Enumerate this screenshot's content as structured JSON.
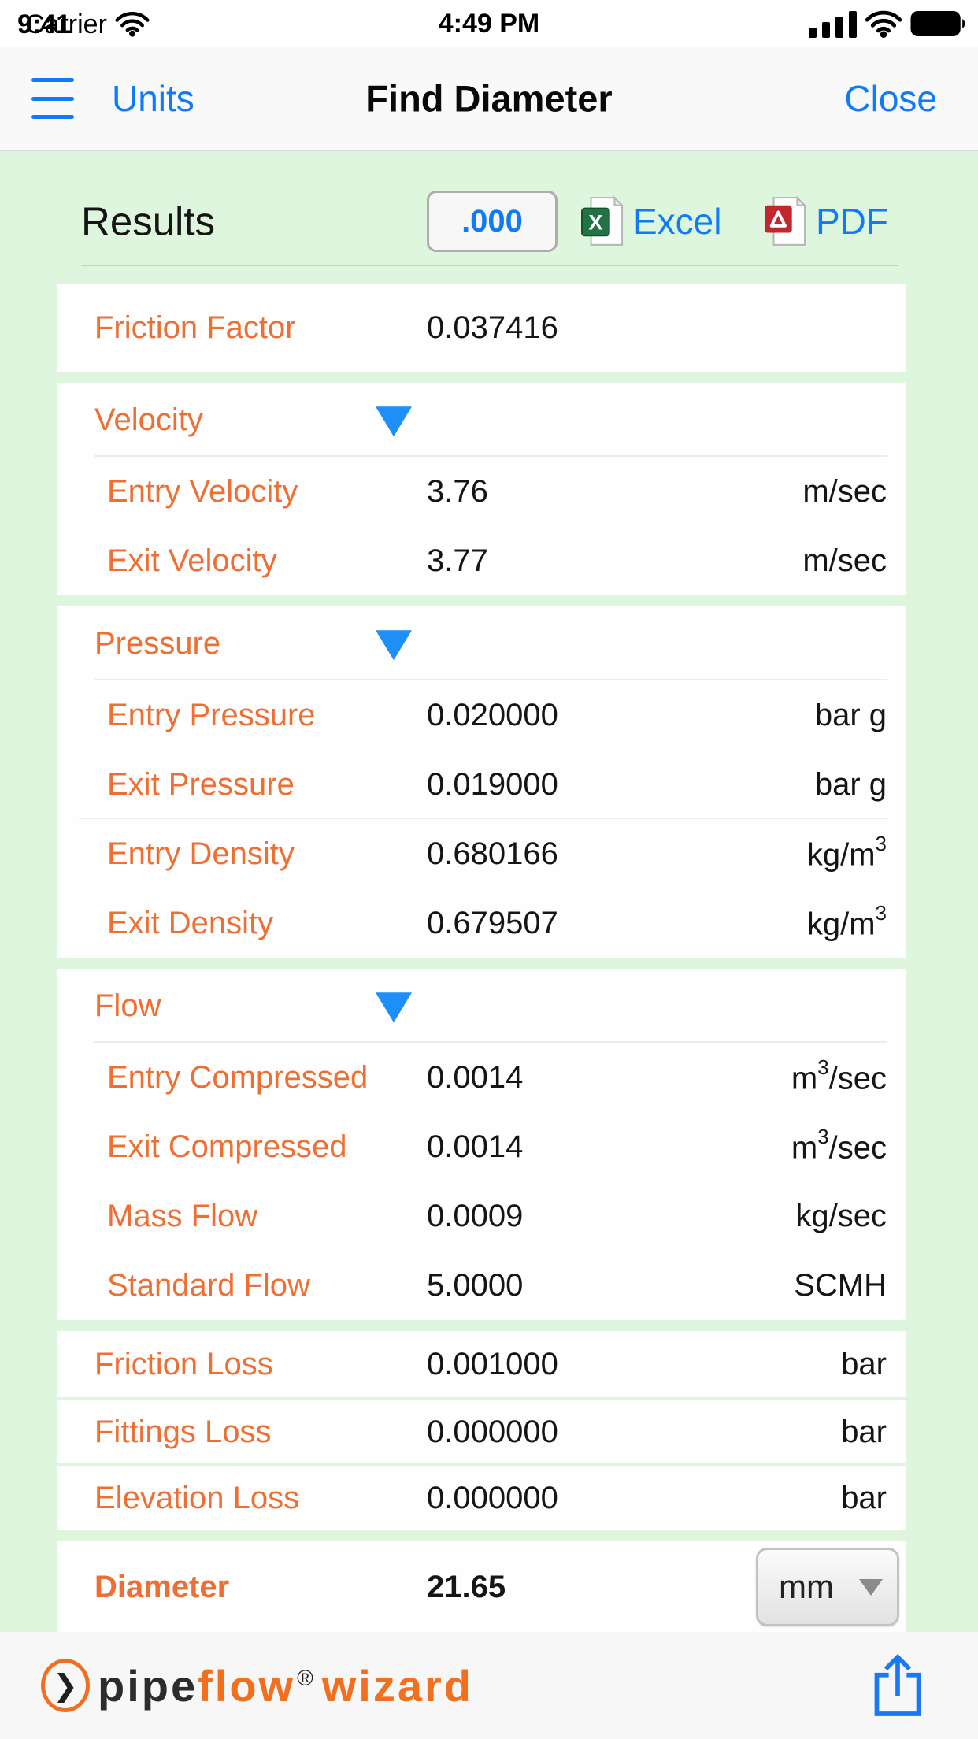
{
  "status_bar": {
    "carrier": "Carrier",
    "time_overlay": "9:41",
    "time": "4:49 PM"
  },
  "nav": {
    "menu_label": "Units",
    "title": "Find Diameter",
    "close_label": "Close"
  },
  "results": {
    "title": "Results",
    "decimals_button_label": ".000",
    "excel_label": "Excel",
    "pdf_label": "PDF"
  },
  "table": {
    "sections": [
      {
        "kind": "single",
        "rows": [
          {
            "label": "Friction Factor",
            "value": "0.037416",
            "unit": ""
          }
        ]
      },
      {
        "kind": "group",
        "header": "Velocity",
        "rows": [
          {
            "label": "Entry Velocity",
            "value": "3.76",
            "unit": "m/sec"
          },
          {
            "label": "Exit Velocity",
            "value": "3.77",
            "unit": "m/sec"
          }
        ]
      },
      {
        "kind": "group",
        "header": "Pressure",
        "rows": [
          {
            "label": "Entry Pressure",
            "value": "0.020000",
            "unit": "bar g"
          },
          {
            "label": "Exit Pressure",
            "value": "0.019000",
            "unit": "bar g",
            "divider_after": true
          },
          {
            "label": "Entry Density",
            "value": "0.680166",
            "unit": "kg/m³"
          },
          {
            "label": "Exit Density",
            "value": "0.679507",
            "unit": "kg/m³"
          }
        ]
      },
      {
        "kind": "group",
        "header": "Flow",
        "rows": [
          {
            "label": "Entry Compressed",
            "value": "0.0014",
            "unit": "m³/sec"
          },
          {
            "label": "Exit Compressed",
            "value": "0.0014",
            "unit": "m³/sec"
          },
          {
            "label": "Mass Flow",
            "value": "0.0009",
            "unit": "kg/sec"
          },
          {
            "label": "Standard Flow",
            "value": "5.0000",
            "unit": "SCMH"
          }
        ]
      },
      {
        "kind": "list",
        "rows": [
          {
            "label": "Friction Loss",
            "value": "0.001000",
            "unit": "bar"
          },
          {
            "label": "Fittings Loss",
            "value": "0.000000",
            "unit": "bar"
          },
          {
            "label": "Elevation Loss",
            "value": "0.000000",
            "unit": "bar"
          }
        ]
      },
      {
        "kind": "diameter",
        "rows": [
          {
            "label": "Diameter",
            "value": "21.65",
            "unit": "mm"
          }
        ]
      }
    ]
  },
  "footer": {
    "logo": {
      "chevron": "❯",
      "word1": "pipe",
      "word2": "flow",
      "registered": "®",
      "word3": "wizard"
    }
  },
  "colors": {
    "link_blue": "#0f7bf8",
    "triangle_blue": "#1e8ef8",
    "label_orange": "#ee6f33",
    "logo_orange": "#f07020",
    "content_green": "#def5de",
    "card_white": "#fefefe",
    "nav_gray": "#f9f9f9",
    "footer_gray": "#f7f7f7",
    "excel_green": "#217346",
    "pdf_red": "#c1272d"
  }
}
